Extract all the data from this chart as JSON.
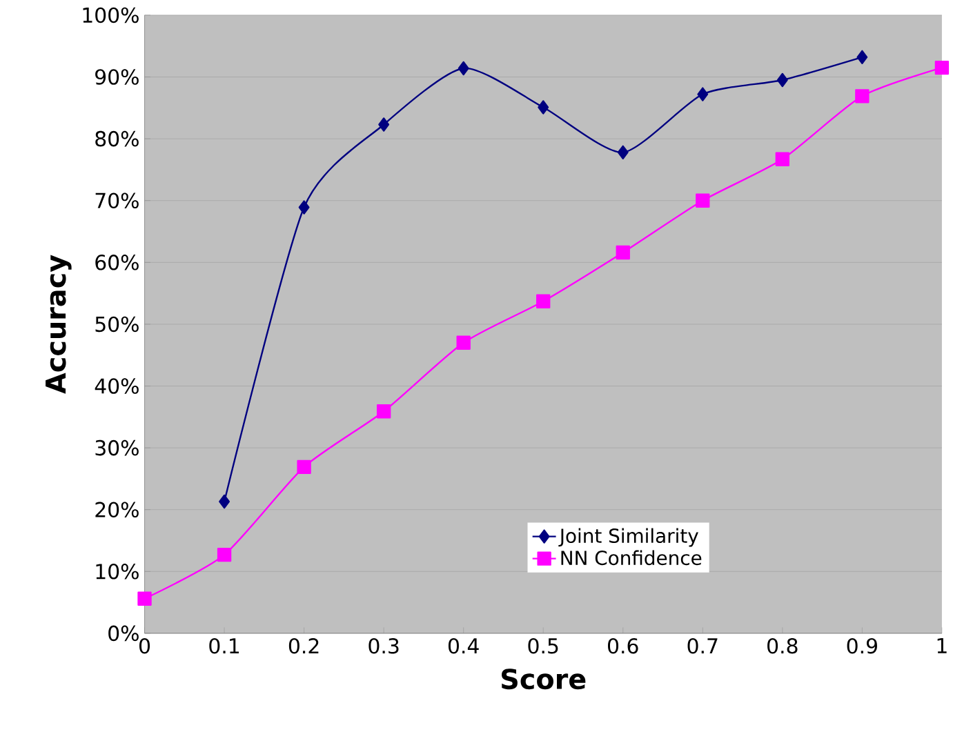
{
  "chart_data": {
    "type": "line",
    "xlabel": "Score",
    "ylabel": "Accuracy",
    "series": [
      {
        "name": "Joint Similarity",
        "color": "#000080",
        "marker": "diamond",
        "x": [
          0.1,
          0.2,
          0.3,
          0.4,
          0.5,
          0.6,
          0.7,
          0.8,
          0.9
        ],
        "values": [
          21.3,
          68.9,
          82.3,
          91.4,
          85.1,
          77.8,
          87.2,
          89.5,
          93.2
        ]
      },
      {
        "name": "NN Confidence",
        "color": "#ff00ff",
        "marker": "square",
        "x": [
          0,
          0.1,
          0.2,
          0.3,
          0.4,
          0.5,
          0.6,
          0.7,
          0.8,
          0.9,
          1
        ],
        "values": [
          5.6,
          12.7,
          26.9,
          35.9,
          47.0,
          53.7,
          61.6,
          70.0,
          76.7,
          86.9,
          91.5
        ]
      }
    ],
    "xlim": [
      0,
      1
    ],
    "xticks": [
      0,
      0.1,
      0.2,
      0.3,
      0.4,
      0.5,
      0.6,
      0.7,
      0.8,
      0.9,
      1
    ],
    "ylim": [
      0,
      100
    ],
    "yticks": [
      {
        "value": 0,
        "label": "0%"
      },
      {
        "value": 10,
        "label": "10%"
      },
      {
        "value": 20,
        "label": "20%"
      },
      {
        "value": 30,
        "label": "30%"
      },
      {
        "value": 40,
        "label": "40%"
      },
      {
        "value": 50,
        "label": "50%"
      },
      {
        "value": 60,
        "label": "60%"
      },
      {
        "value": 70,
        "label": "70%"
      },
      {
        "value": 80,
        "label": "80%"
      },
      {
        "value": 90,
        "label": "90%"
      },
      {
        "value": 100,
        "label": "100%"
      }
    ],
    "grid": "y",
    "legend": "bottom",
    "line_style": "solid"
  }
}
